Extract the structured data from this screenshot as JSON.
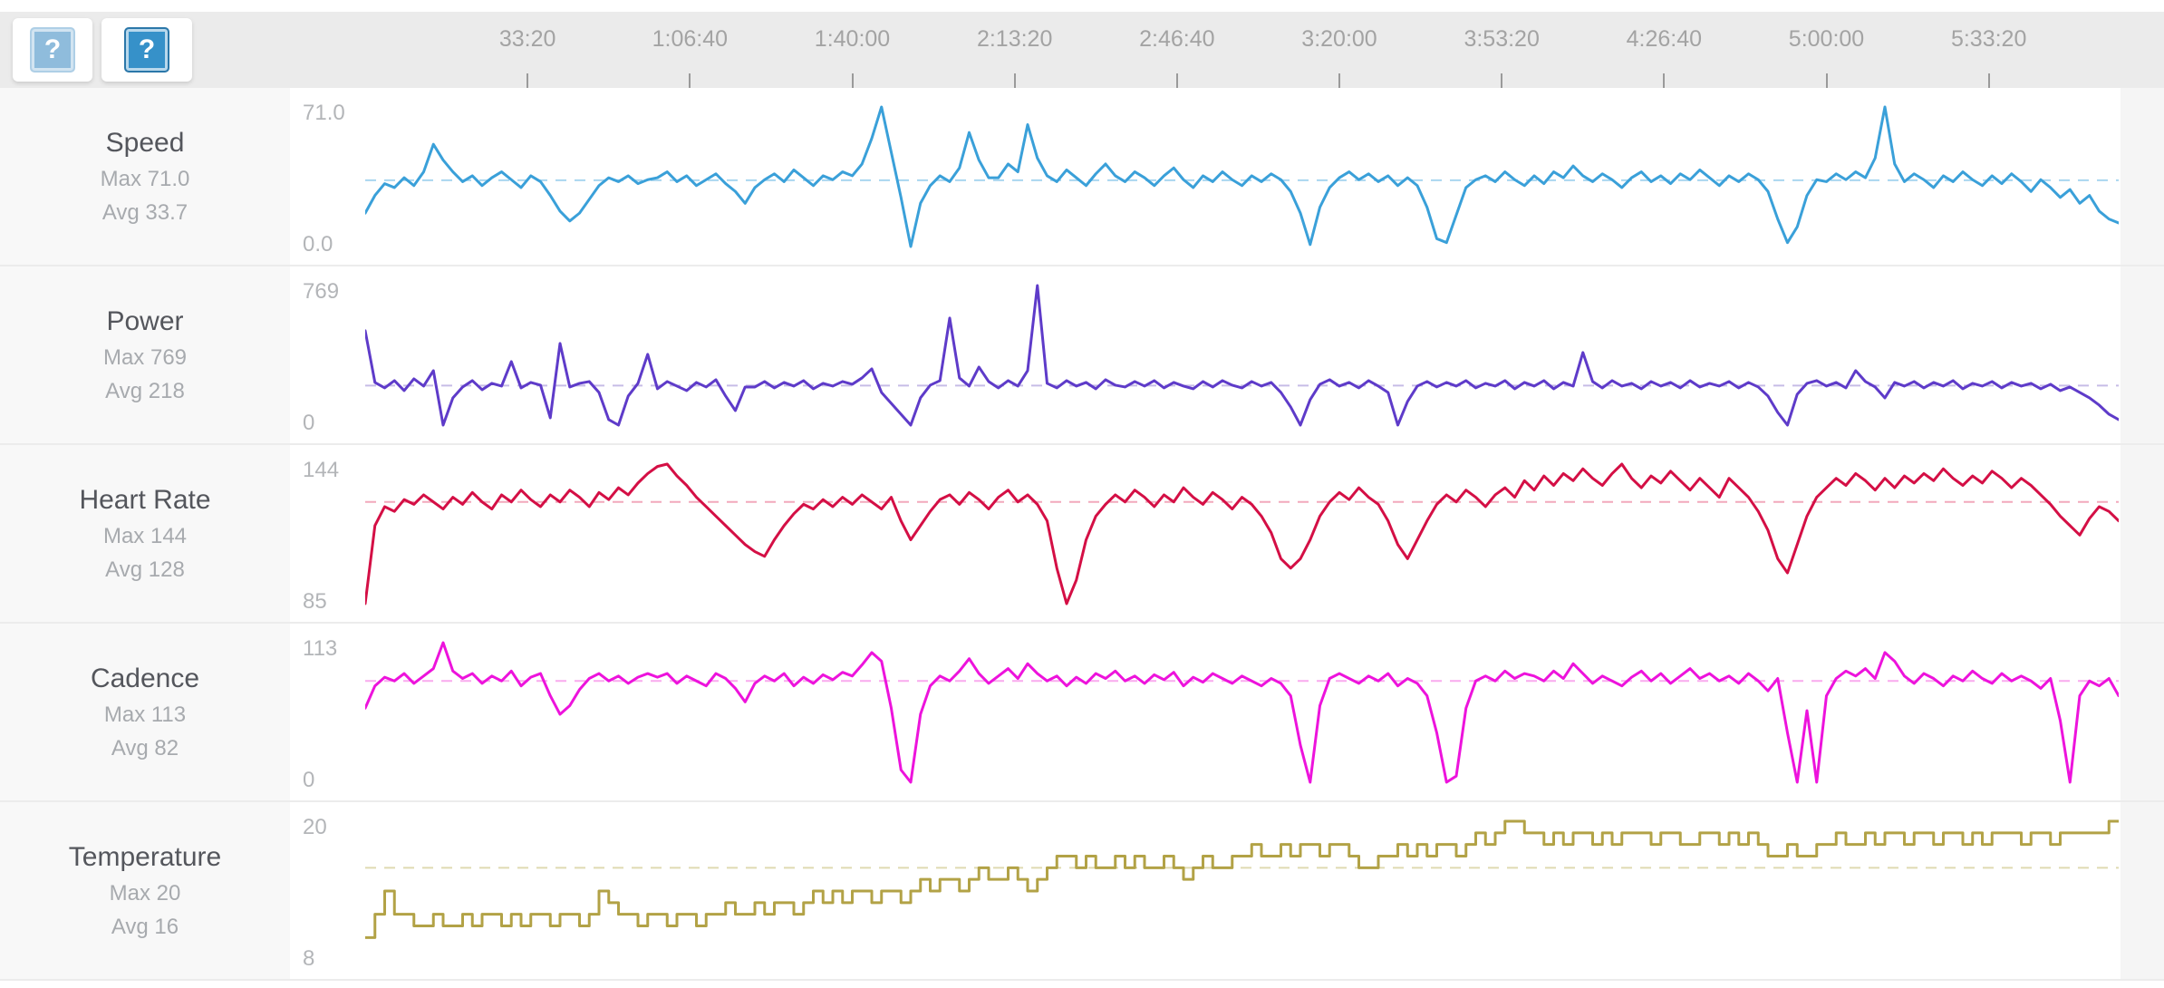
{
  "header": {
    "buttons": [
      {
        "glyph": "?",
        "icon": "question-mark-icon",
        "state": "inactive"
      },
      {
        "glyph": "?",
        "icon": "question-mark-icon",
        "state": "active"
      }
    ],
    "time_axis": {
      "total_seconds": 21600,
      "ticks": [
        {
          "label": "33:20",
          "seconds": 2000
        },
        {
          "label": "1:06:40",
          "seconds": 4000
        },
        {
          "label": "1:40:00",
          "seconds": 6000
        },
        {
          "label": "2:13:20",
          "seconds": 8000
        },
        {
          "label": "2:46:40",
          "seconds": 10000
        },
        {
          "label": "3:20:00",
          "seconds": 12000
        },
        {
          "label": "3:53:20",
          "seconds": 14000
        },
        {
          "label": "4:26:40",
          "seconds": 16000
        },
        {
          "label": "5:00:00",
          "seconds": 18000
        },
        {
          "label": "5:33:20",
          "seconds": 20000
        }
      ]
    }
  },
  "colors": {
    "header_bg": "#ebebeb",
    "sidebar_bg": "#f8f8f8",
    "chart_bg": "#ffffff",
    "divider": "#ececec",
    "tick_label": "#a3a3a3",
    "axis_label": "#b3b5b8",
    "speed_line": "#3aa0d9",
    "power_line": "#5e3bc9",
    "heart_rate_line": "#d40f45",
    "cadence_line": "#ed13dc",
    "temperature_line": "#b2a246",
    "help_button_blue": "#3691c9"
  },
  "chart_data": [
    {
      "type": "line",
      "metric": "Speed",
      "max_label": "Max 71.0",
      "avg_label": "Avg 33.7",
      "y_top_label": "71.0",
      "y_bottom_label": "0.0",
      "ymin": 0,
      "ymax": 71,
      "avg": 33.7,
      "x_start_seconds": 0,
      "x_step_seconds": 120,
      "line_color": "#3aa0d9",
      "avg_line_color": "#a9d6ef",
      "step": false,
      "values": [
        17,
        26,
        32,
        30,
        35,
        31,
        38,
        52,
        44,
        38,
        33,
        36,
        31,
        35,
        38,
        34,
        30,
        36,
        33,
        26,
        18,
        13,
        17,
        24,
        31,
        35,
        33,
        36,
        32,
        34,
        35,
        38,
        33,
        36,
        31,
        34,
        37,
        32,
        28,
        22,
        30,
        34,
        37,
        33,
        39,
        35,
        31,
        36,
        34,
        38,
        36,
        42,
        55,
        71,
        48,
        25,
        0,
        22,
        31,
        36,
        33,
        40,
        58,
        44,
        35,
        35,
        42,
        38,
        62,
        45,
        36,
        33,
        39,
        35,
        31,
        37,
        42,
        36,
        33,
        38,
        35,
        31,
        36,
        40,
        34,
        30,
        36,
        33,
        38,
        34,
        31,
        36,
        33,
        37,
        34,
        28,
        17,
        1,
        20,
        30,
        35,
        38,
        34,
        37,
        33,
        36,
        31,
        35,
        31,
        20,
        4,
        2,
        16,
        30,
        34,
        36,
        33,
        38,
        34,
        31,
        36,
        32,
        38,
        35,
        41,
        36,
        33,
        37,
        34,
        30,
        35,
        38,
        33,
        36,
        32,
        37,
        34,
        39,
        35,
        31,
        36,
        33,
        37,
        34,
        28,
        14,
        2,
        10,
        26,
        34,
        33,
        37,
        34,
        38,
        35,
        45,
        71,
        42,
        33,
        37,
        34,
        30,
        36,
        33,
        38,
        34,
        31,
        36,
        32,
        37,
        33,
        28,
        34,
        30,
        25,
        29,
        22,
        26,
        18,
        14,
        12
      ]
    },
    {
      "type": "line",
      "metric": "Power",
      "max_label": "Max 769",
      "avg_label": "Avg 218",
      "y_top_label": "769",
      "y_bottom_label": "0",
      "ymin": 0,
      "ymax": 769,
      "avg": 218,
      "x_start_seconds": 0,
      "x_step_seconds": 120,
      "line_color": "#5e3bc9",
      "avg_line_color": "#c6bce6",
      "step": false,
      "values": [
        520,
        235,
        205,
        245,
        190,
        255,
        215,
        300,
        0,
        150,
        210,
        245,
        195,
        230,
        215,
        350,
        205,
        235,
        220,
        40,
        450,
        210,
        230,
        240,
        180,
        30,
        0,
        160,
        230,
        390,
        200,
        240,
        215,
        190,
        235,
        210,
        250,
        160,
        80,
        210,
        210,
        240,
        205,
        235,
        215,
        245,
        200,
        230,
        215,
        240,
        225,
        260,
        310,
        180,
        120,
        60,
        0,
        150,
        220,
        245,
        590,
        260,
        215,
        320,
        240,
        205,
        245,
        215,
        300,
        769,
        230,
        205,
        245,
        215,
        235,
        200,
        250,
        220,
        210,
        240,
        215,
        245,
        205,
        235,
        215,
        200,
        240,
        210,
        245,
        220,
        205,
        240,
        215,
        235,
        180,
        100,
        0,
        140,
        225,
        250,
        215,
        235,
        205,
        245,
        215,
        180,
        0,
        130,
        215,
        240,
        210,
        235,
        215,
        245,
        205,
        230,
        215,
        245,
        200,
        235,
        215,
        245,
        200,
        235,
        215,
        400,
        240,
        205,
        245,
        215,
        230,
        200,
        240,
        215,
        235,
        205,
        245,
        210,
        230,
        215,
        240,
        205,
        235,
        210,
        160,
        70,
        0,
        170,
        230,
        245,
        215,
        235,
        205,
        300,
        240,
        210,
        150,
        235,
        215,
        240,
        205,
        235,
        215,
        245,
        200,
        230,
        215,
        240,
        205,
        235,
        215,
        230,
        200,
        225,
        190,
        210,
        180,
        150,
        110,
        60,
        30
      ]
    },
    {
      "type": "line",
      "metric": "Heart Rate",
      "max_label": "Max 144",
      "avg_label": "Avg 128",
      "y_top_label": "144",
      "y_bottom_label": "85",
      "ymin": 85,
      "ymax": 144,
      "avg": 128,
      "x_start_seconds": 0,
      "x_step_seconds": 120,
      "line_color": "#d40f45",
      "avg_line_color": "#f2a9bc",
      "step": false,
      "values": [
        85,
        118,
        126,
        124,
        129,
        127,
        131,
        128,
        125,
        130,
        127,
        132,
        128,
        125,
        131,
        128,
        133,
        129,
        126,
        131,
        128,
        133,
        130,
        126,
        132,
        129,
        134,
        131,
        136,
        140,
        143,
        144,
        139,
        135,
        130,
        126,
        122,
        118,
        114,
        110,
        107,
        105,
        112,
        118,
        123,
        127,
        125,
        129,
        126,
        130,
        127,
        131,
        128,
        125,
        130,
        120,
        112,
        118,
        124,
        129,
        131,
        127,
        132,
        129,
        125,
        130,
        133,
        128,
        131,
        127,
        120,
        100,
        85,
        95,
        112,
        122,
        127,
        131,
        128,
        133,
        130,
        126,
        131,
        128,
        134,
        130,
        127,
        132,
        129,
        125,
        130,
        127,
        122,
        115,
        104,
        100,
        104,
        112,
        122,
        128,
        132,
        129,
        134,
        130,
        127,
        120,
        110,
        104,
        112,
        120,
        127,
        131,
        128,
        133,
        130,
        126,
        131,
        134,
        130,
        137,
        133,
        139,
        135,
        140,
        137,
        142,
        138,
        135,
        140,
        144,
        138,
        134,
        139,
        136,
        141,
        137,
        133,
        138,
        134,
        130,
        138,
        134,
        130,
        124,
        116,
        104,
        98,
        110,
        122,
        130,
        134,
        138,
        135,
        140,
        137,
        133,
        138,
        134,
        139,
        136,
        140,
        137,
        142,
        138,
        135,
        139,
        136,
        141,
        138,
        134,
        138,
        135,
        131,
        127,
        122,
        118,
        114,
        121,
        126,
        124,
        120
      ]
    },
    {
      "type": "line",
      "metric": "Cadence",
      "max_label": "Max 113",
      "avg_label": "Avg 82",
      "y_top_label": "113",
      "y_bottom_label": "0",
      "ymin": 0,
      "ymax": 113,
      "avg": 82,
      "x_start_seconds": 0,
      "x_step_seconds": 120,
      "line_color": "#ed13dc",
      "avg_line_color": "#f9aaee",
      "step": false,
      "values": [
        60,
        78,
        85,
        82,
        88,
        80,
        86,
        92,
        113,
        90,
        84,
        88,
        80,
        86,
        82,
        90,
        78,
        85,
        88,
        70,
        55,
        62,
        75,
        84,
        88,
        82,
        86,
        80,
        85,
        88,
        85,
        88,
        80,
        86,
        82,
        78,
        88,
        84,
        76,
        65,
        80,
        86,
        82,
        88,
        78,
        85,
        80,
        87,
        83,
        89,
        86,
        95,
        105,
        98,
        60,
        10,
        0,
        55,
        78,
        86,
        82,
        90,
        100,
        88,
        80,
        86,
        92,
        84,
        96,
        88,
        82,
        86,
        78,
        85,
        80,
        88,
        84,
        90,
        82,
        86,
        80,
        87,
        83,
        89,
        78,
        85,
        81,
        88,
        84,
        80,
        86,
        82,
        78,
        84,
        80,
        70,
        30,
        0,
        62,
        84,
        88,
        84,
        80,
        86,
        82,
        88,
        78,
        84,
        80,
        70,
        40,
        0,
        5,
        60,
        82,
        86,
        82,
        90,
        84,
        88,
        86,
        82,
        90,
        84,
        96,
        88,
        80,
        86,
        82,
        78,
        85,
        90,
        82,
        88,
        80,
        86,
        92,
        84,
        88,
        82,
        86,
        80,
        88,
        82,
        74,
        84,
        40,
        0,
        58,
        0,
        70,
        84,
        90,
        86,
        92,
        84,
        105,
        98,
        86,
        80,
        88,
        84,
        78,
        86,
        82,
        90,
        84,
        80,
        88,
        82,
        86,
        82,
        76,
        84,
        50,
        0,
        70,
        82,
        78,
        84,
        70
      ]
    },
    {
      "type": "line",
      "metric": "Temperature",
      "max_label": "Max 20",
      "avg_label": "Avg 16",
      "y_top_label": "20",
      "y_bottom_label": "8",
      "ymin": 8,
      "ymax": 20,
      "avg": 16,
      "x_start_seconds": 0,
      "x_step_seconds": 120,
      "line_color": "#b2a246",
      "avg_line_color": "#dfdab2",
      "step": true,
      "values": [
        10,
        12,
        14,
        12,
        12,
        11,
        11,
        12,
        11,
        11,
        12,
        11,
        12,
        12,
        11,
        12,
        11,
        12,
        12,
        11,
        12,
        12,
        11,
        12,
        14,
        13,
        12,
        12,
        11,
        12,
        12,
        11,
        12,
        12,
        11,
        12,
        12,
        13,
        12,
        12,
        13,
        12,
        13,
        13,
        12,
        13,
        14,
        13,
        14,
        13,
        14,
        14,
        13,
        14,
        14,
        13,
        14,
        15,
        14,
        15,
        15,
        14,
        15,
        16,
        15,
        15,
        16,
        15,
        14,
        15,
        16,
        17,
        17,
        16,
        17,
        16,
        16,
        17,
        16,
        17,
        16,
        16,
        17,
        16,
        15,
        16,
        17,
        16,
        16,
        17,
        17,
        18,
        17,
        17,
        18,
        17,
        18,
        18,
        17,
        18,
        18,
        17,
        16,
        16,
        17,
        17,
        18,
        17,
        18,
        17,
        18,
        18,
        17,
        18,
        19,
        18,
        19,
        20,
        20,
        19,
        19,
        18,
        19,
        18,
        19,
        19,
        18,
        19,
        18,
        19,
        19,
        19,
        18,
        19,
        19,
        18,
        18,
        19,
        19,
        18,
        19,
        18,
        19,
        18,
        17,
        17,
        18,
        17,
        17,
        18,
        18,
        19,
        18,
        18,
        19,
        18,
        19,
        19,
        18,
        19,
        19,
        18,
        19,
        19,
        18,
        19,
        18,
        19,
        19,
        19,
        18,
        19,
        19,
        18,
        19,
        19,
        19,
        19,
        19,
        20,
        20
      ]
    }
  ]
}
